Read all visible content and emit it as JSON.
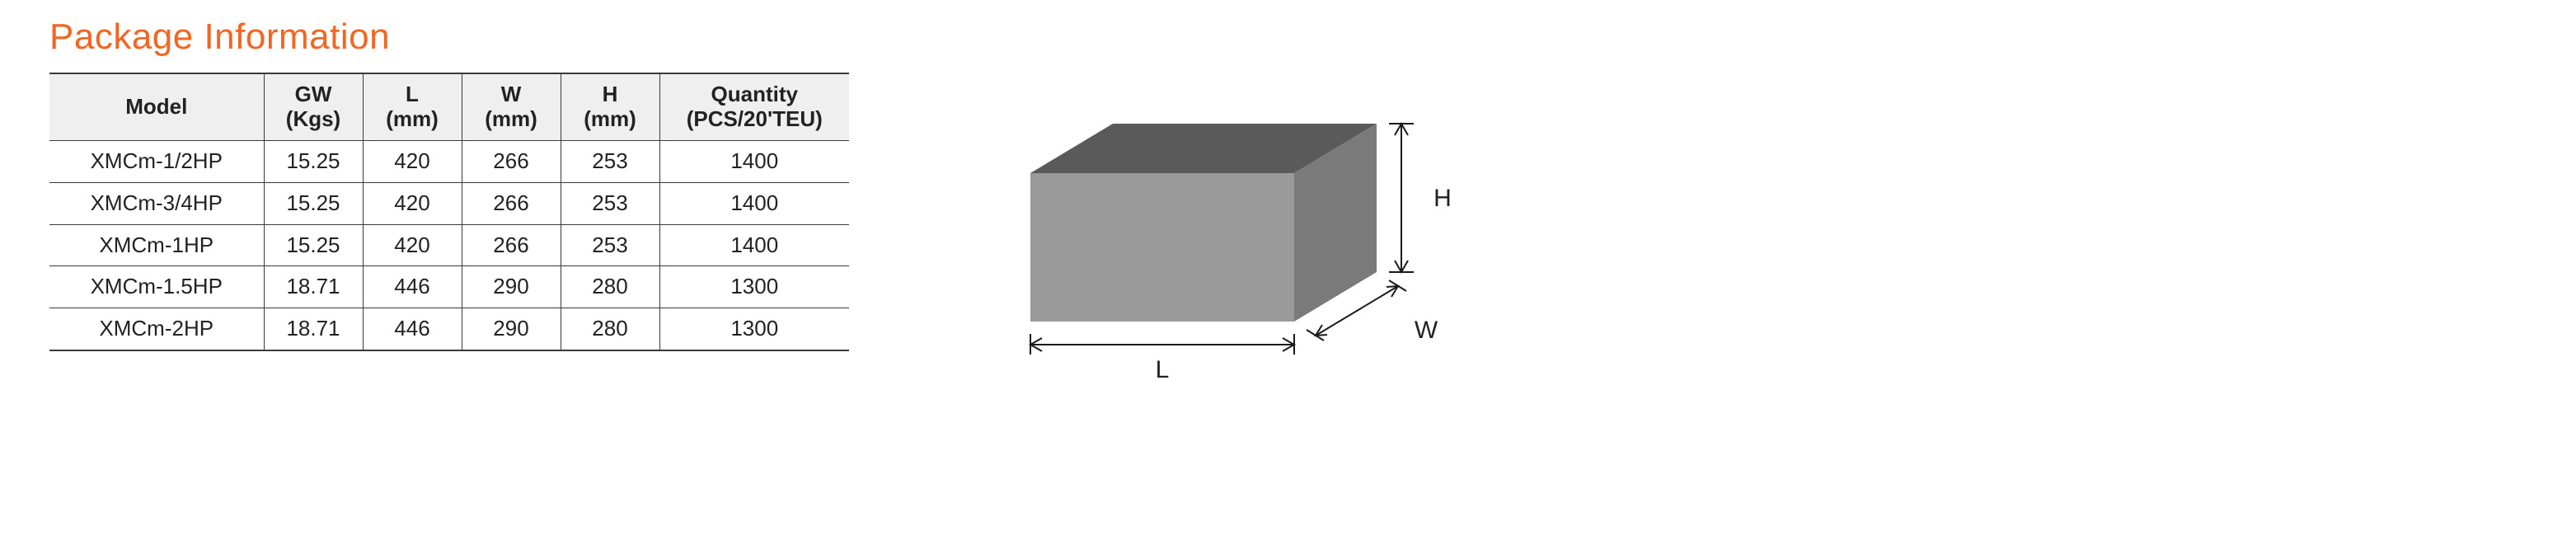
{
  "title": "Package Information",
  "colors": {
    "title": "#f26522",
    "border": "#3a3a3a",
    "header_bg": "#efefef",
    "text": "#222222",
    "box_top": "#5a5a5a",
    "box_front": "#9a9a9a",
    "box_side": "#7a7a7a",
    "dim_line": "#1a1a1a"
  },
  "table": {
    "columns": [
      {
        "key": "model",
        "label": "Model",
        "class": "col-model"
      },
      {
        "key": "gw",
        "label": "GW\n(Kgs)",
        "class": "col-gw"
      },
      {
        "key": "l",
        "label": "L\n(mm)",
        "class": "col-l"
      },
      {
        "key": "w",
        "label": "W\n(mm)",
        "class": "col-w"
      },
      {
        "key": "h",
        "label": "H\n(mm)",
        "class": "col-h"
      },
      {
        "key": "qty",
        "label": "Quantity\n(PCS/20'TEU)",
        "class": "col-qty"
      }
    ],
    "rows": [
      {
        "model": "XMCm-1/2HP",
        "gw": "15.25",
        "l": "420",
        "w": "266",
        "h": "253",
        "qty": "1400"
      },
      {
        "model": "XMCm-3/4HP",
        "gw": "15.25",
        "l": "420",
        "w": "266",
        "h": "253",
        "qty": "1400"
      },
      {
        "model": "XMCm-1HP",
        "gw": "15.25",
        "l": "420",
        "w": "266",
        "h": "253",
        "qty": "1400"
      },
      {
        "model": "XMCm-1.5HP",
        "gw": "18.71",
        "l": "446",
        "w": "290",
        "h": "280",
        "qty": "1300"
      },
      {
        "model": "XMCm-2HP",
        "gw": "18.71",
        "l": "446",
        "w": "290",
        "h": "280",
        "qty": "1300"
      }
    ]
  },
  "diagram": {
    "labels": {
      "L": "L",
      "W": "W",
      "H": "H"
    },
    "label_fontsize": 30
  }
}
